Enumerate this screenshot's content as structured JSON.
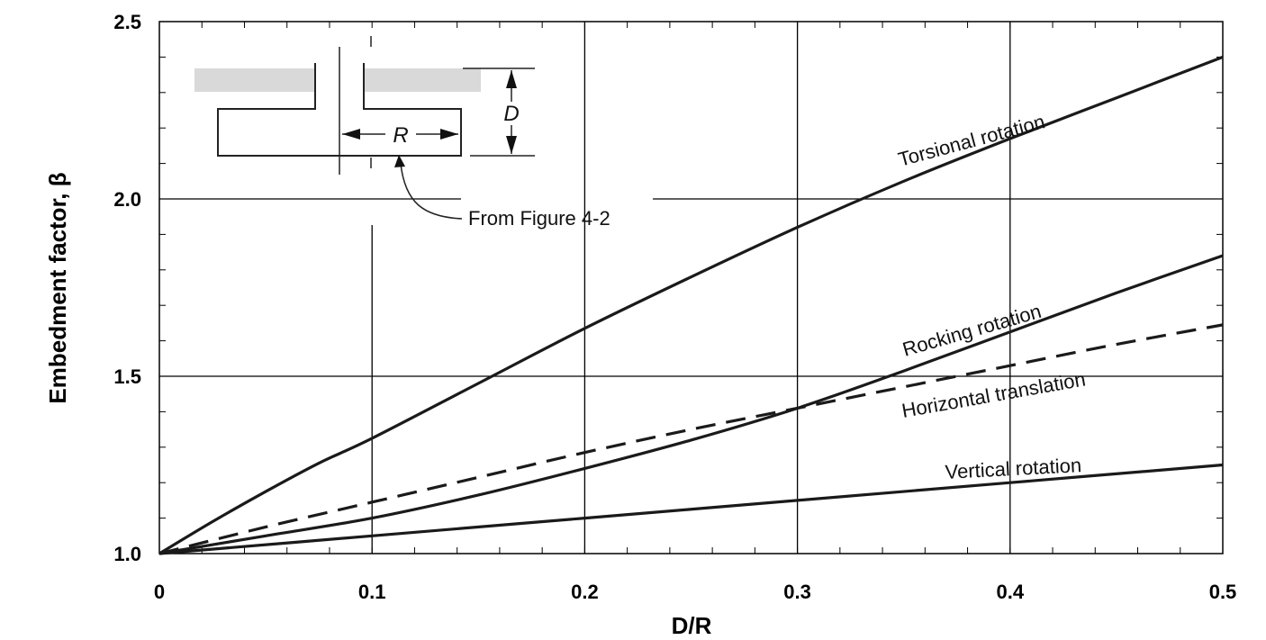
{
  "chart_data": {
    "type": "line",
    "xlabel": "D/R",
    "ylabel": "Embedment factor, β",
    "xlim": [
      0,
      0.5
    ],
    "ylim": [
      1.0,
      2.5
    ],
    "x_ticks": [
      "0",
      "0.1",
      "0.2",
      "0.3",
      "0.4",
      "0.5"
    ],
    "y_ticks": [
      "1.0",
      "1.5",
      "2.0",
      "2.5"
    ],
    "grid": true,
    "series": [
      {
        "name": "Torsional rotation",
        "style": "solid",
        "x": [
          0,
          0.025,
          0.05,
          0.075,
          0.1,
          0.15,
          0.2,
          0.25,
          0.3,
          0.35,
          0.4,
          0.45,
          0.5
        ],
        "y": [
          1.0,
          1.09,
          1.175,
          1.255,
          1.325,
          1.48,
          1.635,
          1.78,
          1.92,
          2.05,
          2.17,
          2.285,
          2.4
        ]
      },
      {
        "name": "Rocking rotation",
        "style": "solid",
        "x": [
          0,
          0.05,
          0.1,
          0.15,
          0.2,
          0.25,
          0.3,
          0.35,
          0.4,
          0.45,
          0.5
        ],
        "y": [
          1.0,
          1.05,
          1.1,
          1.165,
          1.24,
          1.32,
          1.41,
          1.515,
          1.625,
          1.735,
          1.84
        ]
      },
      {
        "name": "Horizontal translation",
        "style": "dashed",
        "x": [
          0,
          0.05,
          0.1,
          0.15,
          0.2,
          0.25,
          0.3,
          0.35,
          0.4,
          0.45,
          0.5
        ],
        "y": [
          1.0,
          1.075,
          1.145,
          1.215,
          1.285,
          1.35,
          1.41,
          1.47,
          1.53,
          1.59,
          1.645
        ]
      },
      {
        "name": "Vertical rotation",
        "style": "solid",
        "x": [
          0,
          0.1,
          0.2,
          0.3,
          0.4,
          0.5
        ],
        "y": [
          1.0,
          1.05,
          1.1,
          1.15,
          1.2,
          1.25
        ]
      }
    ],
    "annotations": {
      "inset_note": "From Figure 4-2",
      "dim_d": "D",
      "dim_r": "R"
    },
    "colors": {
      "line": "#1a1a1a",
      "grid": "#000000",
      "inset_fill": "#d9d9d9"
    }
  }
}
